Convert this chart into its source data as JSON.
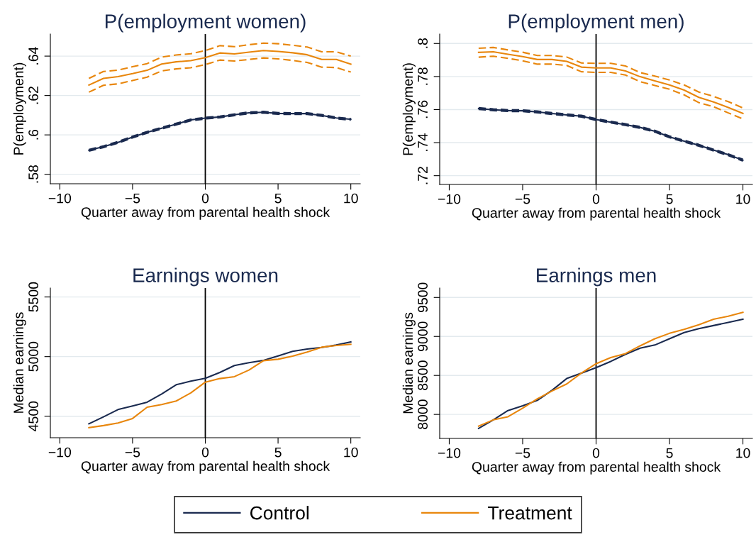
{
  "chart_data": [
    {
      "type": "line",
      "title": "P(employment women)",
      "xlabel": "Quarter away from parental health shock",
      "ylabel": "P(employment)",
      "x": [
        -8,
        -7,
        -6,
        -5,
        -4,
        -3,
        -2,
        -1,
        0,
        1,
        2,
        3,
        4,
        5,
        6,
        7,
        8,
        9,
        10
      ],
      "xlim": [
        -10.65,
        10.65
      ],
      "xticks": [
        -10,
        -5,
        0,
        5,
        10
      ],
      "ylim": [
        0.5752,
        0.6512
      ],
      "yticks": [
        {
          "value": 0.58,
          "label": ".58"
        },
        {
          "value": 0.6,
          "label": ".6"
        },
        {
          "value": 0.62,
          "label": ".62"
        },
        {
          "value": 0.64,
          "label": ".64"
        }
      ],
      "grid": "y",
      "ref_lines": [
        {
          "axis": "x",
          "value": 0,
          "color": "#000000"
        }
      ],
      "series": [
        {
          "color": "#1a2a4f",
          "values": [
            0.5922,
            0.594,
            0.5962,
            0.5989,
            0.6013,
            0.6034,
            0.6055,
            0.6076,
            0.6085,
            0.6091,
            0.6102,
            0.6112,
            0.6115,
            0.6109,
            0.6108,
            0.6108,
            0.6099,
            0.6086,
            0.6079
          ]
        },
        {
          "color": "#1a2a4f",
          "line_style": "dashed",
          "values": [
            0.5926,
            0.5944,
            0.5966,
            0.5993,
            0.6017,
            0.6038,
            0.6059,
            0.608,
            0.6089,
            0.6095,
            0.6106,
            0.6116,
            0.6119,
            0.6113,
            0.6112,
            0.6112,
            0.6103,
            0.609,
            0.6083
          ]
        },
        {
          "color": "#1a2a4f",
          "line_style": "dashed",
          "values": [
            0.5918,
            0.5936,
            0.5958,
            0.5985,
            0.6009,
            0.603,
            0.6051,
            0.6072,
            0.6081,
            0.6087,
            0.6098,
            0.6108,
            0.6111,
            0.6105,
            0.6104,
            0.6104,
            0.6095,
            0.6082,
            0.6075
          ]
        },
        {
          "color": "#e8860c",
          "values": [
            0.6253,
            0.6287,
            0.6296,
            0.6311,
            0.6328,
            0.636,
            0.6371,
            0.6377,
            0.6392,
            0.6416,
            0.6411,
            0.642,
            0.6428,
            0.6424,
            0.6417,
            0.6407,
            0.6383,
            0.6383,
            0.6359
          ]
        },
        {
          "color": "#e8860c",
          "line_style": "dashed",
          "values": [
            0.6287,
            0.6322,
            0.6329,
            0.6346,
            0.6362,
            0.6395,
            0.6406,
            0.6412,
            0.6428,
            0.6453,
            0.6448,
            0.6458,
            0.6466,
            0.6463,
            0.6455,
            0.6446,
            0.6422,
            0.6422,
            0.64
          ]
        },
        {
          "color": "#e8860c",
          "line_style": "dashed",
          "values": [
            0.6217,
            0.6252,
            0.6259,
            0.6276,
            0.6293,
            0.6325,
            0.6335,
            0.6341,
            0.6357,
            0.638,
            0.6375,
            0.6383,
            0.6391,
            0.6386,
            0.6378,
            0.6368,
            0.6344,
            0.6342,
            0.6319
          ]
        }
      ]
    },
    {
      "type": "line",
      "title": "P(employment men)",
      "xlabel": "Quarter away from parental health shock",
      "ylabel": "P(employment)",
      "x": [
        -8,
        -7,
        -6,
        -5,
        -4,
        -3,
        -2,
        -1,
        0,
        1,
        2,
        3,
        4,
        5,
        6,
        7,
        8,
        9,
        10
      ],
      "xlim": [
        -10.65,
        10.65
      ],
      "xticks": [
        -10,
        -5,
        0,
        5,
        10
      ],
      "ylim": [
        0.7147,
        0.8057
      ],
      "yticks": [
        {
          "value": 0.72,
          "label": ".72"
        },
        {
          "value": 0.74,
          "label": ".74"
        },
        {
          "value": 0.76,
          "label": ".76"
        },
        {
          "value": 0.78,
          "label": ".78"
        },
        {
          "value": 0.8,
          "label": ".8"
        }
      ],
      "grid": "y",
      "ref_lines": [
        {
          "axis": "x",
          "value": 0,
          "color": "#000000"
        }
      ],
      "series": [
        {
          "color": "#1a2a4f",
          "values": [
            0.7606,
            0.7599,
            0.7594,
            0.7593,
            0.7586,
            0.7576,
            0.7568,
            0.756,
            0.754,
            0.7524,
            0.7509,
            0.7492,
            0.7469,
            0.7435,
            0.7409,
            0.7384,
            0.7355,
            0.7327,
            0.7294
          ]
        },
        {
          "color": "#1a2a4f",
          "line_style": "dashed",
          "values": [
            0.7611,
            0.7604,
            0.7599,
            0.7598,
            0.7591,
            0.7581,
            0.7573,
            0.7565,
            0.7545,
            0.7529,
            0.7514,
            0.7497,
            0.7474,
            0.744,
            0.7414,
            0.7389,
            0.736,
            0.7332,
            0.7299
          ]
        },
        {
          "color": "#1a2a4f",
          "line_style": "dashed",
          "values": [
            0.7601,
            0.7594,
            0.7589,
            0.7588,
            0.7581,
            0.7571,
            0.7563,
            0.7555,
            0.7535,
            0.7519,
            0.7504,
            0.7487,
            0.7464,
            0.743,
            0.7404,
            0.7379,
            0.735,
            0.7322,
            0.7289
          ]
        },
        {
          "color": "#e8860c",
          "values": [
            0.7946,
            0.795,
            0.7935,
            0.7921,
            0.7903,
            0.7903,
            0.7892,
            0.7857,
            0.7852,
            0.7852,
            0.7834,
            0.7799,
            0.7774,
            0.7749,
            0.7718,
            0.7674,
            0.7646,
            0.7613,
            0.7577
          ]
        },
        {
          "color": "#e8860c",
          "line_style": "dashed",
          "values": [
            0.7971,
            0.7976,
            0.7961,
            0.7947,
            0.7927,
            0.7927,
            0.7918,
            0.7882,
            0.788,
            0.788,
            0.7864,
            0.7824,
            0.7803,
            0.7779,
            0.7749,
            0.7706,
            0.768,
            0.7648,
            0.761
          ]
        },
        {
          "color": "#e8860c",
          "line_style": "dashed",
          "values": [
            0.7917,
            0.7923,
            0.791,
            0.7895,
            0.7875,
            0.7875,
            0.7867,
            0.7829,
            0.7825,
            0.7825,
            0.7809,
            0.7769,
            0.7746,
            0.7723,
            0.7689,
            0.7642,
            0.7617,
            0.758,
            0.7543
          ]
        }
      ]
    },
    {
      "type": "line",
      "title": "Earnings women",
      "xlabel": "Quarter away from parental health shock",
      "ylabel": "Median earnings",
      "x": [
        -8,
        -7,
        -6,
        -5,
        -4,
        -3,
        -2,
        -1,
        0,
        1,
        2,
        3,
        4,
        5,
        6,
        7,
        8,
        9,
        10
      ],
      "xlim": [
        -10.65,
        10.65
      ],
      "xticks": [
        -10,
        -5,
        0,
        5,
        10
      ],
      "ylim": [
        4320,
        5575
      ],
      "yticks": [
        4500,
        5000,
        5500
      ],
      "grid": "y",
      "ref_lines": [
        {
          "axis": "x",
          "value": 0,
          "color": "#000000"
        }
      ],
      "series": [
        {
          "color": "#1a2a4f",
          "values": [
            4437,
            4495,
            4556,
            4586,
            4618,
            4687,
            4764,
            4794,
            4818,
            4867,
            4925,
            4949,
            4968,
            5006,
            5044,
            5063,
            5077,
            5097,
            5123
          ]
        },
        {
          "color": "#e8860c",
          "values": [
            4404,
            4422,
            4444,
            4481,
            4576,
            4598,
            4628,
            4695,
            4786,
            4816,
            4832,
            4887,
            4966,
            4978,
            5004,
            5038,
            5079,
            5093,
            5103
          ]
        }
      ]
    },
    {
      "type": "line",
      "title": "Earnings men",
      "xlabel": "Quarter away from parental health shock",
      "ylabel": "Median earnings",
      "x": [
        -8,
        -7,
        -6,
        -5,
        -4,
        -3,
        -2,
        -1,
        0,
        1,
        2,
        3,
        4,
        5,
        6,
        7,
        8,
        9,
        10
      ],
      "xlim": [
        -10.65,
        10.65
      ],
      "xticks": [
        -10,
        -5,
        0,
        5,
        10
      ],
      "ylim": [
        7692,
        9621
      ],
      "yticks": [
        8000,
        8500,
        9000,
        9500
      ],
      "grid": "y",
      "legend": "bottom",
      "ref_lines": [
        {
          "axis": "x",
          "value": 0,
          "color": "#000000"
        }
      ],
      "series": [
        {
          "name": "Control",
          "color": "#1a2a4f",
          "values": [
            7820,
            7930,
            8050,
            8110,
            8180,
            8310,
            8460,
            8530,
            8600,
            8680,
            8770,
            8850,
            8890,
            8970,
            9050,
            9100,
            9140,
            9180,
            9220
          ]
        },
        {
          "name": "Treatment",
          "color": "#e8860c",
          "values": [
            7850,
            7930,
            7970,
            8080,
            8200,
            8300,
            8390,
            8530,
            8650,
            8730,
            8780,
            8880,
            8970,
            9040,
            9090,
            9150,
            9220,
            9260,
            9310
          ]
        }
      ]
    }
  ]
}
